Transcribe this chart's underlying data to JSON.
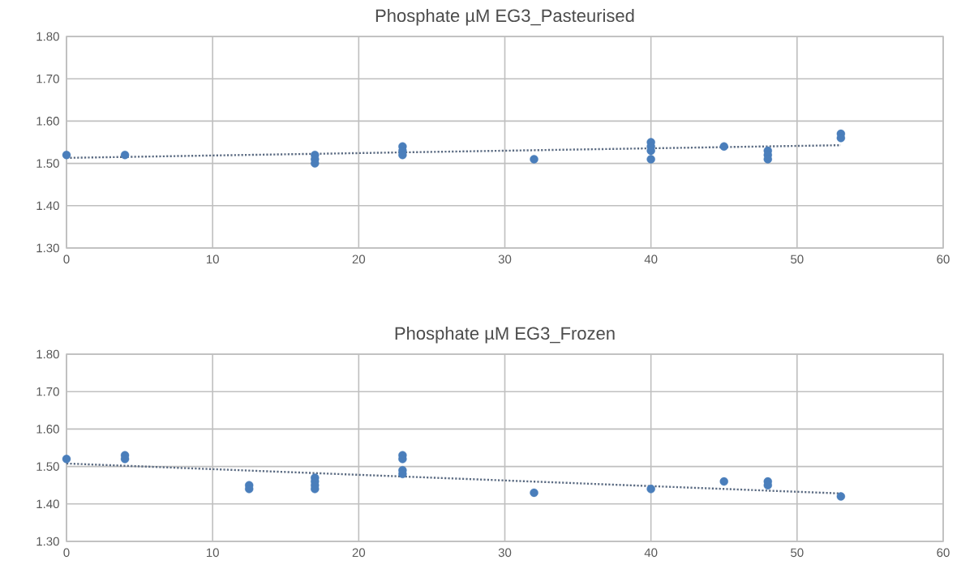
{
  "chart_data": [
    {
      "type": "scatter",
      "title": "Phosphate µM EG3_Pasteurised",
      "xlim": [
        0,
        60
      ],
      "xticks": [
        0,
        10,
        20,
        30,
        40,
        50,
        60
      ],
      "ylim": [
        1.3,
        1.8
      ],
      "yticks": [
        {
          "value": 1.3,
          "label": "1.30"
        },
        {
          "value": 1.4,
          "label": "1.40"
        },
        {
          "value": 1.5,
          "label": "1.50"
        },
        {
          "value": 1.6,
          "label": "1.60"
        },
        {
          "value": 1.7,
          "label": "1.70"
        },
        {
          "value": 1.8,
          "label": "1.80"
        }
      ],
      "grid": true,
      "series": [
        {
          "color": "#4a7ebb",
          "marker": "circle",
          "x": [
            0,
            4,
            17,
            17,
            17,
            23,
            23,
            23,
            32,
            40,
            40,
            40,
            40,
            45,
            48,
            48,
            48,
            53,
            53
          ],
          "values": [
            1.52,
            1.52,
            1.52,
            1.51,
            1.5,
            1.54,
            1.53,
            1.52,
            1.51,
            1.55,
            1.54,
            1.53,
            1.51,
            1.54,
            1.53,
            1.52,
            1.51,
            1.57,
            1.56
          ]
        },
        {
          "type": "line",
          "color": "#5b6b82",
          "marker": "none",
          "line_style": "dotted",
          "x": [
            0,
            53
          ],
          "values": [
            1.513,
            1.543
          ]
        }
      ]
    },
    {
      "type": "scatter",
      "title": "Phosphate µM EG3_Frozen",
      "xlim": [
        0,
        60
      ],
      "xticks": [
        0,
        10,
        20,
        30,
        40,
        50,
        60
      ],
      "ylim": [
        1.3,
        1.8
      ],
      "yticks": [
        {
          "value": 1.3,
          "label": "1.30"
        },
        {
          "value": 1.4,
          "label": "1.40"
        },
        {
          "value": 1.5,
          "label": "1.50"
        },
        {
          "value": 1.6,
          "label": "1.60"
        },
        {
          "value": 1.7,
          "label": "1.70"
        },
        {
          "value": 1.8,
          "label": "1.80"
        }
      ],
      "grid": true,
      "series": [
        {
          "color": "#4a7ebb",
          "marker": "circle",
          "x": [
            0,
            4,
            4,
            12.5,
            12.5,
            17,
            17,
            17,
            17,
            23,
            23,
            23,
            23,
            32,
            40,
            45,
            48,
            48,
            53
          ],
          "values": [
            1.52,
            1.53,
            1.52,
            1.45,
            1.44,
            1.47,
            1.46,
            1.45,
            1.44,
            1.53,
            1.52,
            1.49,
            1.48,
            1.43,
            1.44,
            1.46,
            1.46,
            1.45,
            1.42
          ]
        },
        {
          "type": "line",
          "color": "#5b6b82",
          "marker": "none",
          "line_style": "dotted",
          "x": [
            0,
            53
          ],
          "values": [
            1.508,
            1.428
          ]
        }
      ]
    }
  ]
}
